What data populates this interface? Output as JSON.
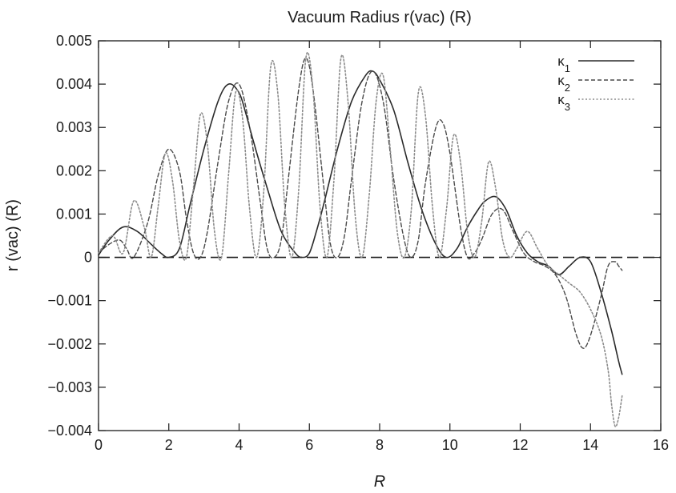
{
  "chart_data": {
    "type": "line",
    "title": "Vacuum Radius r(vac) (R)",
    "xlabel": "R",
    "ylabel": "r (vac) (R)",
    "xlim": [
      0,
      16
    ],
    "ylim": [
      -0.004,
      0.005
    ],
    "xticks": [
      0,
      2,
      4,
      6,
      8,
      10,
      12,
      14,
      16
    ],
    "xtick_labels": [
      "0",
      "2",
      "4",
      "6",
      "8",
      "10",
      "12",
      "14",
      "16"
    ],
    "yticks": [
      0.005,
      0.004,
      0.003,
      0.002,
      0.001,
      0,
      -0.001,
      -0.002,
      -0.003,
      -0.004
    ],
    "ytick_labels": [
      "0.005",
      "0.004",
      "0.003",
      "0.002",
      "0.001",
      "0",
      "−0.001",
      "−0.002",
      "−0.003",
      "−0.004"
    ],
    "grid": false,
    "legend_position": "top-right",
    "zero_line": true,
    "colors": {
      "axis": "#1a1a1a",
      "kappa1": "#2b2b2b",
      "kappa2": "#4a4a4a",
      "kappa3": "#8c8c8c"
    },
    "series": [
      {
        "name": "κ1",
        "style": "solid",
        "x": [
          0,
          0.3,
          0.7,
          1.1,
          1.5,
          1.8,
          2.0,
          2.3,
          2.6,
          3.0,
          3.4,
          3.7,
          4.0,
          4.2,
          4.4,
          4.8,
          5.2,
          5.6,
          5.8,
          6.0,
          6.2,
          6.4,
          6.8,
          7.2,
          7.6,
          7.8,
          8.0,
          8.4,
          8.8,
          9.2,
          9.6,
          9.9,
          10.2,
          10.5,
          10.8,
          11.0,
          11.3,
          11.6,
          11.9,
          12.2,
          12.5,
          12.8,
          13.1,
          13.4,
          13.7,
          14.0,
          14.3,
          14.6,
          14.8,
          14.9
        ],
        "y": [
          5e-05,
          0.0004,
          0.0007,
          0.0006,
          0.0003,
          8e-05,
          0.0,
          0.0002,
          0.0012,
          0.0025,
          0.0036,
          0.004,
          0.0038,
          0.0033,
          0.0027,
          0.0016,
          0.0006,
          0.0001,
          0.0,
          0.0001,
          0.0006,
          0.0012,
          0.0025,
          0.0036,
          0.0042,
          0.0043,
          0.0041,
          0.0034,
          0.0022,
          0.0011,
          0.0003,
          0.0,
          0.0002,
          0.0007,
          0.0011,
          0.0013,
          0.0014,
          0.0011,
          0.0005,
          0.0001,
          -0.0001,
          -0.0002,
          -0.0004,
          -0.0002,
          0.0,
          -0.0001,
          -0.0008,
          -0.0017,
          -0.0024,
          -0.0027
        ]
      },
      {
        "name": "κ2",
        "style": "dashed",
        "x": [
          0,
          0.3,
          0.6,
          0.8,
          1.0,
          1.4,
          1.7,
          2.0,
          2.3,
          2.5,
          2.7,
          2.9,
          3.1,
          3.4,
          3.7,
          4.0,
          4.3,
          4.6,
          4.8,
          5.0,
          5.2,
          5.4,
          5.7,
          5.9,
          6.1,
          6.4,
          6.6,
          6.8,
          7.0,
          7.2,
          7.5,
          7.8,
          8.1,
          8.4,
          8.7,
          8.9,
          9.1,
          9.3,
          9.6,
          9.8,
          10.0,
          10.3,
          10.5,
          10.7,
          10.9,
          11.2,
          11.5,
          11.8,
          12.1,
          12.4,
          12.7,
          13.0,
          13.3,
          13.6,
          13.8,
          14.0,
          14.3,
          14.5,
          14.7,
          14.8,
          14.9
        ],
        "y": [
          0.0001,
          0.0003,
          0.0004,
          0.0002,
          0.0,
          0.0008,
          0.0019,
          0.0025,
          0.002,
          0.0009,
          0.0001,
          0.0,
          0.0006,
          0.0022,
          0.0036,
          0.004,
          0.003,
          0.0013,
          0.0002,
          0.0,
          0.0004,
          0.0018,
          0.0039,
          0.0046,
          0.0039,
          0.0017,
          0.0003,
          0.0,
          0.0005,
          0.0018,
          0.0036,
          0.0043,
          0.0036,
          0.0018,
          0.0004,
          0.0,
          0.0004,
          0.0017,
          0.003,
          0.0031,
          0.0024,
          0.0007,
          0.0,
          0.0001,
          0.0004,
          0.001,
          0.0011,
          0.0006,
          0.0001,
          -0.0001,
          -0.0002,
          -0.0004,
          -0.0009,
          -0.0018,
          -0.0021,
          -0.0018,
          -0.0009,
          -0.0002,
          -0.0001,
          -0.0002,
          -0.0003
        ]
      },
      {
        "name": "κ3",
        "style": "dotted",
        "x": [
          0,
          0.4,
          0.7,
          1.0,
          1.3,
          1.5,
          1.7,
          1.9,
          2.1,
          2.3,
          2.5,
          2.7,
          2.9,
          3.1,
          3.3,
          3.5,
          3.7,
          3.9,
          4.1,
          4.3,
          4.5,
          4.7,
          4.9,
          5.1,
          5.3,
          5.5,
          5.7,
          5.9,
          6.1,
          6.3,
          6.5,
          6.7,
          6.9,
          7.1,
          7.3,
          7.5,
          7.7,
          7.9,
          8.1,
          8.3,
          8.5,
          8.7,
          8.9,
          9.1,
          9.3,
          9.5,
          9.7,
          9.9,
          10.1,
          10.3,
          10.5,
          10.7,
          10.9,
          11.1,
          11.3,
          11.5,
          11.7,
          11.9,
          12.2,
          12.5,
          12.8,
          13.1,
          13.4,
          13.7,
          14.0,
          14.3,
          14.5,
          14.6,
          14.7,
          14.8,
          14.9
        ],
        "y": [
          0.0001,
          0.0005,
          0.0001,
          0.0013,
          0.0007,
          0.0,
          0.0012,
          0.0024,
          0.0018,
          0.0004,
          0.0,
          0.0016,
          0.0033,
          0.0026,
          0.0006,
          0.0,
          0.0019,
          0.0038,
          0.0032,
          0.0011,
          0.0,
          0.0015,
          0.0044,
          0.0038,
          0.0012,
          0.0,
          0.0016,
          0.0046,
          0.0039,
          0.0012,
          0.0,
          0.0018,
          0.0046,
          0.0036,
          0.001,
          0.0,
          0.0014,
          0.0036,
          0.0042,
          0.0025,
          0.0006,
          0.0,
          0.0011,
          0.0038,
          0.0033,
          0.0012,
          0.0,
          0.0011,
          0.0028,
          0.0022,
          0.0006,
          0.0,
          0.0008,
          0.0022,
          0.0016,
          0.0004,
          0.0,
          0.0002,
          0.0006,
          0.0002,
          -0.0002,
          -0.0004,
          -0.0006,
          -0.0008,
          -0.0012,
          -0.0018,
          -0.0026,
          -0.0034,
          -0.0039,
          -0.0037,
          -0.0032
        ]
      }
    ]
  }
}
